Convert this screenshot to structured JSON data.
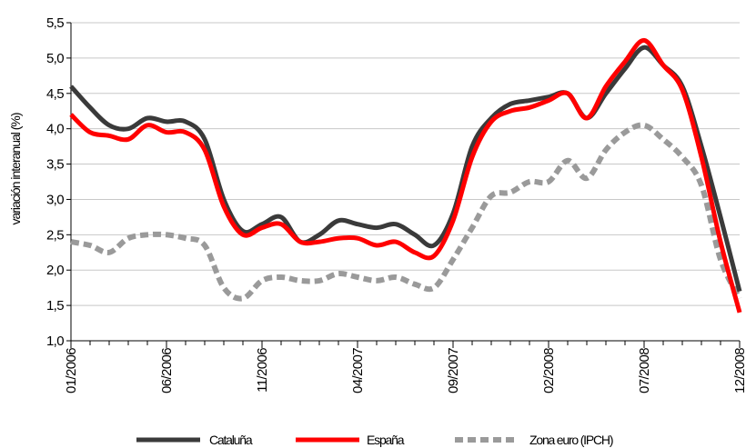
{
  "chart_data": {
    "type": "line",
    "ylabel": "variación interanual (%)",
    "ylim": [
      1.0,
      5.5
    ],
    "y_ticks": [
      "1,0",
      "1,5",
      "2,0",
      "2,5",
      "3,0",
      "3,5",
      "4,0",
      "4,5",
      "5,0",
      "5,5"
    ],
    "x_tick_labels": [
      "01/2006",
      "06/2006",
      "11/2006",
      "04/2007",
      "09/2007",
      "02/2008",
      "07/2008",
      "12/2008"
    ],
    "x": [
      "01/2006",
      "02/2006",
      "03/2006",
      "04/2006",
      "05/2006",
      "06/2006",
      "07/2006",
      "08/2006",
      "09/2006",
      "10/2006",
      "11/2006",
      "12/2006",
      "01/2007",
      "02/2007",
      "03/2007",
      "04/2007",
      "05/2007",
      "06/2007",
      "07/2007",
      "08/2007",
      "09/2007",
      "10/2007",
      "11/2007",
      "12/2007",
      "01/2008",
      "02/2008",
      "03/2008",
      "04/2008",
      "05/2008",
      "06/2008",
      "07/2008",
      "08/2008",
      "09/2008",
      "10/2008",
      "11/2008",
      "12/2008"
    ],
    "grid": "horizontal",
    "legend_position": "bottom",
    "series": [
      {
        "name": "Cataluña",
        "color": "#3a3a3a",
        "style": "solid",
        "values": [
          4.6,
          4.3,
          4.05,
          4.0,
          4.15,
          4.1,
          4.1,
          3.85,
          3.0,
          2.55,
          2.65,
          2.75,
          2.4,
          2.5,
          2.7,
          2.65,
          2.6,
          2.65,
          2.5,
          2.35,
          2.8,
          3.75,
          4.15,
          4.35,
          4.4,
          4.45,
          4.5,
          4.15,
          4.5,
          4.85,
          5.15,
          4.9,
          4.6,
          3.75,
          2.75,
          1.7
        ]
      },
      {
        "name": "España",
        "color": "#ff0000",
        "style": "solid",
        "values": [
          4.2,
          3.95,
          3.9,
          3.85,
          4.05,
          3.95,
          3.95,
          3.7,
          2.9,
          2.5,
          2.6,
          2.65,
          2.4,
          2.4,
          2.45,
          2.45,
          2.35,
          2.4,
          2.25,
          2.2,
          2.7,
          3.6,
          4.1,
          4.25,
          4.3,
          4.4,
          4.5,
          4.15,
          4.6,
          4.95,
          5.25,
          4.9,
          4.55,
          3.6,
          2.4,
          1.4
        ]
      },
      {
        "name": "Zona euro (IPCH)",
        "color": "#9a9a9a",
        "style": "dashed",
        "values": [
          2.4,
          2.35,
          2.25,
          2.45,
          2.5,
          2.5,
          2.45,
          2.35,
          1.75,
          1.6,
          1.85,
          1.9,
          1.85,
          1.85,
          1.95,
          1.9,
          1.85,
          1.9,
          1.8,
          1.75,
          2.15,
          2.6,
          3.05,
          3.1,
          3.25,
          3.25,
          3.55,
          3.3,
          3.7,
          3.95,
          4.05,
          3.85,
          3.6,
          3.2,
          2.15,
          1.6
        ]
      }
    ]
  }
}
